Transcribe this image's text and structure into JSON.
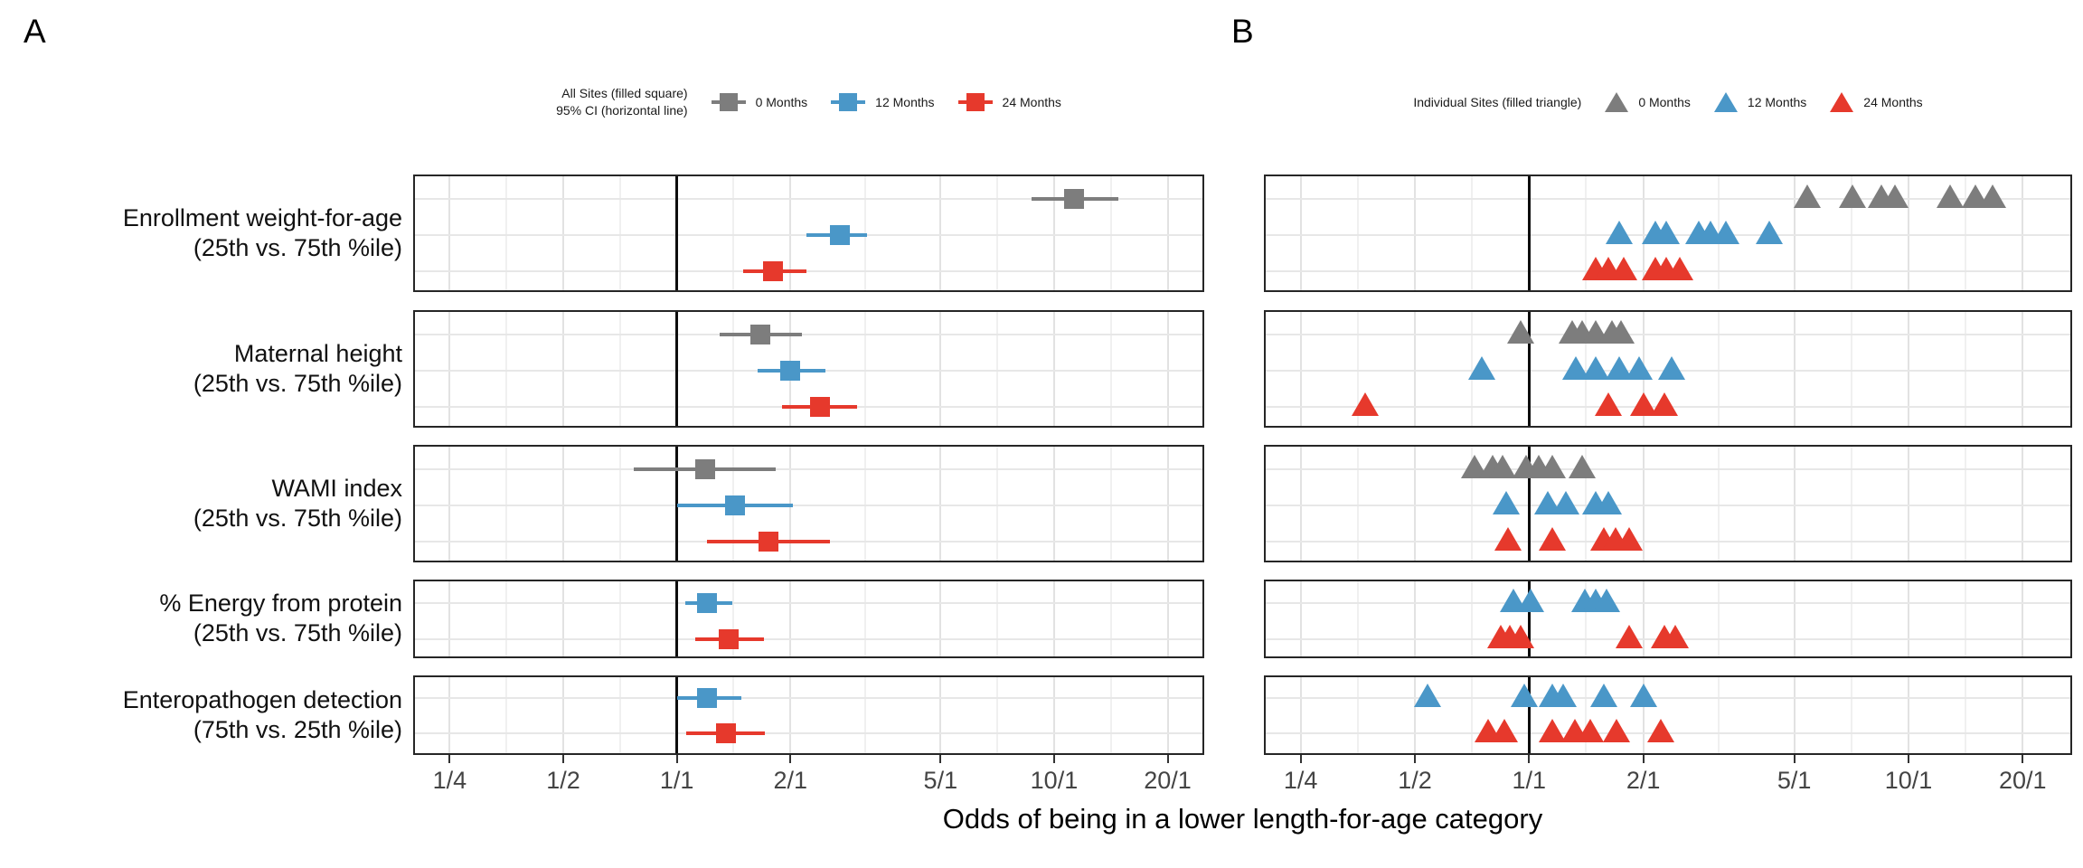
{
  "panel_a": {
    "label": "A",
    "legend": {
      "key_line1": "All Sites (filled square)",
      "key_line2": "95% CI (horizontal line)",
      "items": [
        {
          "label": "0 Months",
          "color": "#7d7d7d"
        },
        {
          "label": "12 Months",
          "color": "#4a97c8"
        },
        {
          "label": "24 Months",
          "color": "#e6392c"
        }
      ]
    }
  },
  "panel_b": {
    "label": "B",
    "legend": {
      "key_line1": "Individual Sites (filled triangle)",
      "items": [
        {
          "label": "0 Months",
          "color": "#7d7d7d"
        },
        {
          "label": "12 Months",
          "color": "#4a97c8"
        },
        {
          "label": "24 Months",
          "color": "#e6392c"
        }
      ]
    }
  },
  "axis": {
    "title": "Odds of being in a lower length-for-age category",
    "tick_labels": [
      "1/4",
      "1/2",
      "1/1",
      "2/1",
      "5/1",
      "10/1",
      "20/1"
    ],
    "tick_values": [
      0.25,
      0.5,
      1,
      2,
      5,
      10,
      20
    ]
  },
  "chart_data": {
    "type": "scatter",
    "x_scale": "log",
    "reference_line": 1,
    "xlim_a": [
      0.2,
      25
    ],
    "xlim_b": [
      0.2,
      27
    ],
    "grid": "on",
    "series_labels": [
      "0 Months",
      "12 Months",
      "24 Months"
    ],
    "colors": {
      "0 Months": "#7d7d7d",
      "12 Months": "#4a97c8",
      "24 Months": "#e6392c"
    },
    "panel_a_meaning": "All sites pooled odds ratio (filled square) with 95% CI (horizontal line)",
    "panel_b_meaning": "Individual site odds ratios (filled triangles)",
    "rows": [
      {
        "label_line1": "Enrollment weight-for-age",
        "label_line2": "(25th vs. 75th %ile)",
        "all_sites": [
          {
            "series": "0 Months",
            "or": 11.3,
            "lo": 8.7,
            "hi": 14.8
          },
          {
            "series": "12 Months",
            "or": 2.7,
            "lo": 2.2,
            "hi": 3.2
          },
          {
            "series": "24 Months",
            "or": 1.8,
            "lo": 1.5,
            "hi": 2.2
          }
        ],
        "individual_sites": [
          {
            "series": "0 Months",
            "values": [
              5.4,
              7.1,
              8.5,
              9.2,
              12.9,
              15.0,
              16.7
            ]
          },
          {
            "series": "12 Months",
            "values": [
              1.73,
              2.15,
              2.3,
              2.8,
              3.0,
              3.3,
              4.3
            ]
          },
          {
            "series": "24 Months",
            "values": [
              1.5,
              1.62,
              1.78,
              2.15,
              2.3,
              2.5
            ]
          }
        ]
      },
      {
        "label_line1": "Maternal height",
        "label_line2": "(25th vs. 75th %ile)",
        "all_sites": [
          {
            "series": "0 Months",
            "or": 1.66,
            "lo": 1.3,
            "hi": 2.15
          },
          {
            "series": "12 Months",
            "or": 2.0,
            "lo": 1.64,
            "hi": 2.48
          },
          {
            "series": "24 Months",
            "or": 2.39,
            "lo": 1.9,
            "hi": 3.0
          }
        ],
        "individual_sites": [
          {
            "series": "0 Months",
            "values": [
              0.95,
              1.3,
              1.38,
              1.5,
              1.65,
              1.75
            ]
          },
          {
            "series": "12 Months",
            "values": [
              0.75,
              1.33,
              1.5,
              1.73,
              1.95,
              2.37
            ]
          },
          {
            "series": "24 Months",
            "values": [
              0.37,
              1.62,
              2.0,
              2.27
            ]
          }
        ]
      },
      {
        "label_line1": "WAMI index",
        "label_line2": "(25th vs. 75th %ile)",
        "all_sites": [
          {
            "series": "0 Months",
            "or": 1.19,
            "lo": 0.77,
            "hi": 1.83
          },
          {
            "series": "12 Months",
            "or": 1.43,
            "lo": 1.0,
            "hi": 2.03
          },
          {
            "series": "24 Months",
            "or": 1.75,
            "lo": 1.2,
            "hi": 2.55
          }
        ],
        "individual_sites": [
          {
            "series": "0 Months",
            "values": [
              0.72,
              0.8,
              0.85,
              0.98,
              1.06,
              1.15,
              1.38
            ]
          },
          {
            "series": "12 Months",
            "values": [
              0.87,
              1.12,
              1.25,
              1.5,
              1.62
            ]
          },
          {
            "series": "24 Months",
            "values": [
              0.88,
              1.15,
              1.57,
              1.69,
              1.84
            ]
          }
        ]
      },
      {
        "label_line1": "% Energy from protein",
        "label_line2": "(25th vs. 75th %ile)",
        "all_sites": [
          {
            "series": "12 Months",
            "or": 1.2,
            "lo": 1.05,
            "hi": 1.4
          },
          {
            "series": "24 Months",
            "or": 1.37,
            "lo": 1.12,
            "hi": 1.7
          }
        ],
        "individual_sites": [
          {
            "series": "12 Months",
            "values": [
              0.91,
              1.01,
              1.4,
              1.5,
              1.6
            ]
          },
          {
            "series": "24 Months",
            "values": [
              0.84,
              0.89,
              0.95,
              1.84,
              2.27,
              2.43
            ]
          }
        ]
      },
      {
        "label_line1": "Enteropathogen detection",
        "label_line2": "(75th vs. 25th %ile)",
        "all_sites": [
          {
            "series": "12 Months",
            "or": 1.2,
            "lo": 1.0,
            "hi": 1.48
          },
          {
            "series": "24 Months",
            "or": 1.35,
            "lo": 1.06,
            "hi": 1.71
          }
        ],
        "individual_sites": [
          {
            "series": "12 Months",
            "values": [
              0.54,
              0.97,
              1.15,
              1.23,
              1.57,
              2.0
            ]
          },
          {
            "series": "24 Months",
            "values": [
              0.78,
              0.86,
              1.15,
              1.32,
              1.45,
              1.7,
              2.23
            ]
          }
        ]
      }
    ]
  }
}
